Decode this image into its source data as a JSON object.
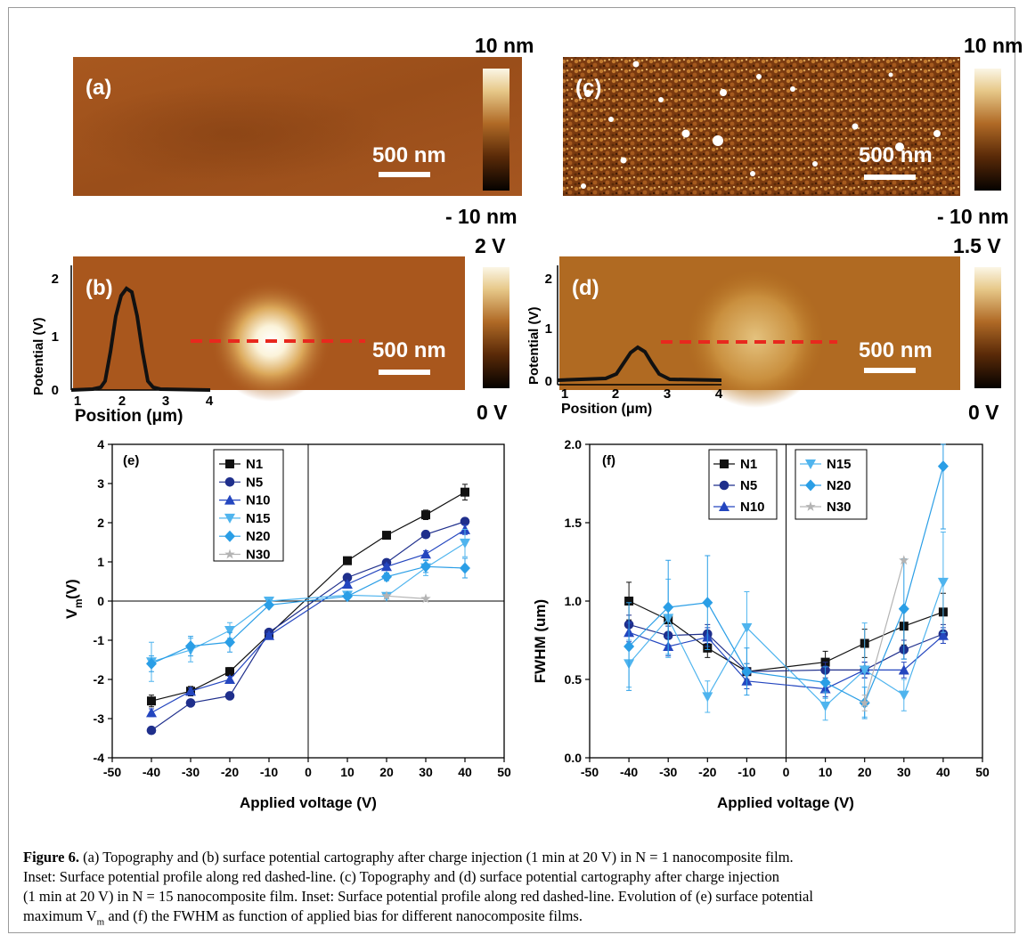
{
  "panels": {
    "a": {
      "label": "(a)",
      "scale_bar": "500 nm",
      "colorbar_max": "10 nm",
      "colorbar_min": "- 10 nm"
    },
    "b": {
      "label": "(b)",
      "scale_bar": "500 nm",
      "colorbar_max": "2 V",
      "colorbar_min": "0 V",
      "inset": {
        "ylabel": "Potential (V)",
        "xlabel": "Position (μm)",
        "yticks": [
          "0",
          "1",
          "2"
        ],
        "xticks": [
          "1",
          "2",
          "3",
          "4"
        ]
      }
    },
    "c": {
      "label": "(c)",
      "scale_bar": "500 nm",
      "colorbar_max": "10 nm",
      "colorbar_min": "- 10 nm"
    },
    "d": {
      "label": "(d)",
      "scale_bar": "500 nm",
      "colorbar_max": "1.5 V",
      "colorbar_min": "0 V",
      "inset": {
        "ylabel": "Potential (V)",
        "xlabel": "Position (μm)",
        "yticks": [
          "0",
          "1",
          "2"
        ],
        "xticks": [
          "1",
          "2",
          "3",
          "4"
        ]
      }
    }
  },
  "colors": {
    "afm_dark": "#3a1a05",
    "afm_mid": "#a0521c",
    "afm_light": "#f7f1e0",
    "dashed_line": "#e8281e",
    "N1": "#111111",
    "N5": "#1f2f8c",
    "N10": "#2446bf",
    "N15": "#4fb4ee",
    "N20": "#2a9ee6",
    "N30": "#b4b4b4"
  },
  "chart_data": [
    {
      "id": "e",
      "type": "scatter",
      "panel_label": "(e)",
      "xlabel": "Applied voltage (V)",
      "ylabel_main": "V",
      "ylabel_sub": "m",
      "ylabel_unit": " (V)",
      "xlim": [
        -50,
        50
      ],
      "ylim": [
        -4,
        4
      ],
      "xticks": [
        -50,
        -40,
        -30,
        -20,
        -10,
        0,
        10,
        20,
        30,
        40,
        50
      ],
      "yticks": [
        -4,
        -3,
        -2,
        -1,
        0,
        1,
        2,
        3,
        4
      ],
      "x": [
        -40,
        -30,
        -20,
        -10,
        10,
        20,
        30,
        40
      ],
      "legend_position": "top-left",
      "series": [
        {
          "name": "N1",
          "marker": "square",
          "color": "#111111",
          "values": [
            -2.55,
            -2.3,
            -1.8,
            -0.85,
            1.03,
            1.68,
            2.2,
            2.78
          ],
          "errors": [
            0.15,
            0.12,
            0.1,
            0.06,
            0.06,
            0.08,
            0.12,
            0.2
          ]
        },
        {
          "name": "N5",
          "marker": "circle",
          "color": "#1f2f8c",
          "values": [
            -3.3,
            -2.6,
            -2.42,
            -0.8,
            0.6,
            0.98,
            1.7,
            2.03
          ],
          "errors": [
            0.04,
            0.04,
            0.04,
            0.04,
            0.04,
            0.04,
            0.04,
            0.04
          ]
        },
        {
          "name": "N10",
          "marker": "triangle-up",
          "color": "#2446bf",
          "values": [
            -2.85,
            -2.3,
            -2.0,
            -0.88,
            0.43,
            0.88,
            1.2,
            1.82
          ],
          "errors": [
            0.1,
            0.08,
            0.08,
            0.05,
            0.05,
            0.06,
            0.08,
            0.12
          ]
        },
        {
          "name": "N15",
          "marker": "triangle-down",
          "color": "#4fb4ee",
          "values": [
            -1.55,
            -1.25,
            -0.75,
            0.0,
            0.15,
            0.12,
            0.85,
            1.48
          ],
          "errors": [
            0.5,
            0.3,
            0.2,
            0.05,
            0.05,
            0.05,
            0.2,
            0.35
          ]
        },
        {
          "name": "N20",
          "marker": "diamond",
          "color": "#2a9ee6",
          "values": [
            -1.6,
            -1.15,
            -1.05,
            -0.1,
            0.12,
            0.62,
            0.88,
            0.84
          ],
          "errors": [
            0.2,
            0.25,
            0.25,
            0.05,
            0.05,
            0.1,
            0.15,
            0.25
          ]
        },
        {
          "name": "N30",
          "marker": "star",
          "color": "#b4b4b4",
          "values": [
            null,
            null,
            null,
            null,
            null,
            0.13,
            0.06,
            null
          ],
          "errors": [
            0,
            0,
            0,
            0,
            0,
            0,
            0,
            0
          ]
        }
      ]
    },
    {
      "id": "f",
      "type": "scatter",
      "panel_label": "(f)",
      "xlabel": "Applied voltage (V)",
      "ylabel": "FWHM (um)",
      "xlim": [
        -50,
        50
      ],
      "ylim": [
        0.0,
        2.0
      ],
      "xticks": [
        -50,
        -40,
        -30,
        -20,
        -10,
        0,
        10,
        20,
        30,
        40,
        50
      ],
      "yticks": [
        "0.0",
        "0.5",
        "1.0",
        "1.5",
        "2.0"
      ],
      "x": [
        -40,
        -30,
        -20,
        -10,
        10,
        20,
        30,
        40
      ],
      "legend_position": "top (two boxes)",
      "series": [
        {
          "name": "N1",
          "marker": "square",
          "color": "#111111",
          "values": [
            1.0,
            0.88,
            0.7,
            0.55,
            0.61,
            0.73,
            0.84,
            0.93
          ],
          "errors": [
            0.12,
            0.08,
            0.06,
            0.05,
            0.07,
            0.09,
            0.12,
            0.12
          ]
        },
        {
          "name": "N5",
          "marker": "circle",
          "color": "#1f2f8c",
          "values": [
            0.85,
            0.78,
            0.79,
            0.55,
            0.56,
            0.56,
            0.69,
            0.79
          ],
          "errors": [
            0.06,
            0.06,
            0.06,
            0.05,
            0.05,
            0.05,
            0.06,
            0.06
          ]
        },
        {
          "name": "N10",
          "marker": "triangle-up",
          "color": "#2446bf",
          "values": [
            0.8,
            0.71,
            0.77,
            0.49,
            0.44,
            0.56,
            0.56,
            0.78
          ],
          "errors": [
            0.06,
            0.06,
            0.06,
            0.05,
            0.05,
            0.05,
            0.05,
            0.05
          ]
        },
        {
          "name": "N15",
          "marker": "triangle-down",
          "color": "#4fb4ee",
          "values": [
            0.6,
            0.89,
            0.39,
            0.83,
            0.33,
            0.56,
            0.4,
            1.12
          ],
          "errors": [
            0.15,
            0.25,
            0.1,
            0.23,
            0.09,
            0.3,
            0.1,
            0.32
          ]
        },
        {
          "name": "N20",
          "marker": "diamond",
          "color": "#2a9ee6",
          "values": [
            0.71,
            0.96,
            0.99,
            0.55,
            0.48,
            0.35,
            0.95,
            1.86
          ],
          "errors": [
            0.28,
            0.3,
            0.3,
            0.15,
            0.1,
            0.1,
            0.32,
            0.4
          ]
        },
        {
          "name": "N30",
          "marker": "star",
          "color": "#b4b4b4",
          "values": [
            null,
            null,
            null,
            null,
            null,
            0.35,
            1.26,
            null
          ],
          "errors": [
            0,
            0,
            0,
            0,
            0,
            0.05,
            0,
            0
          ]
        }
      ]
    }
  ],
  "caption": {
    "label": "Figure 6.",
    "line1": "(a) Topography and (b) surface potential cartography after charge injection (1 min at 20 V) in N = 1 nanocomposite film.",
    "line2": "Inset: Surface potential profile along red dashed-line. (c) Topography and (d) surface potential cartography after charge injection",
    "line3": "(1 min at 20 V) in N = 15 nanocomposite film. Inset: Surface potential profile along red dashed-line. Evolution of (e) surface potential",
    "line4_start": "maximum V",
    "line4_sub": "m",
    "line4_end": " and (f) the FWHM as function of applied bias for different nanocomposite films."
  }
}
